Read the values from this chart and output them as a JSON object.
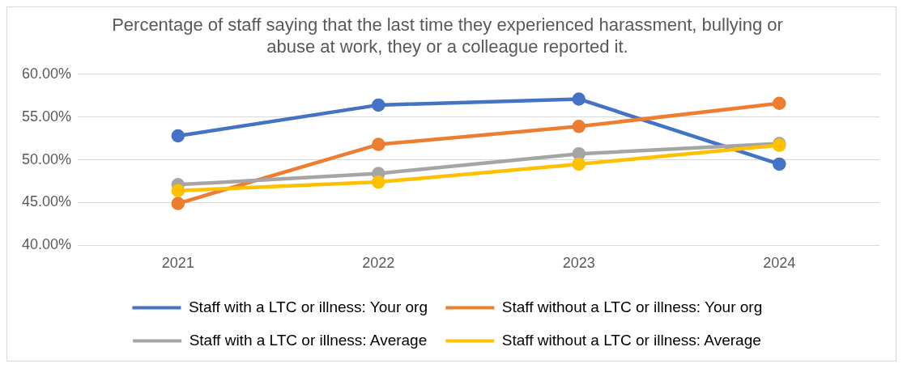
{
  "chart_data": {
    "type": "line",
    "title": "Percentage of staff saying that the last time they experienced harassment, bullying or abuse at work, they or a colleague reported it.",
    "categories": [
      "2021",
      "2022",
      "2023",
      "2024"
    ],
    "series": [
      {
        "name": "Staff with a LTC or illness: Your org",
        "color": "#4472c4",
        "values": [
          52.8,
          56.4,
          57.1,
          49.5
        ]
      },
      {
        "name": "Staff without a LTC or illness: Your org",
        "color": "#ed7d31",
        "values": [
          44.9,
          51.8,
          53.9,
          56.6
        ]
      },
      {
        "name": "Staff with a LTC or illness: Average",
        "color": "#a5a5a5",
        "values": [
          47.1,
          48.4,
          50.7,
          51.9
        ]
      },
      {
        "name": "Staff without a LTC or illness: Average",
        "color": "#ffc000",
        "values": [
          46.4,
          47.4,
          49.5,
          51.7
        ]
      }
    ],
    "ylim": [
      40,
      60
    ],
    "yticks": [
      {
        "value": 40,
        "label": "40.00%"
      },
      {
        "value": 45,
        "label": "45.00%"
      },
      {
        "value": 50,
        "label": "50.00%"
      },
      {
        "value": 55,
        "label": "55.00%"
      },
      {
        "value": 60,
        "label": "60.00%"
      }
    ],
    "grid": "y",
    "legend": "bottom",
    "marker": "circle",
    "line_style": "solid"
  }
}
